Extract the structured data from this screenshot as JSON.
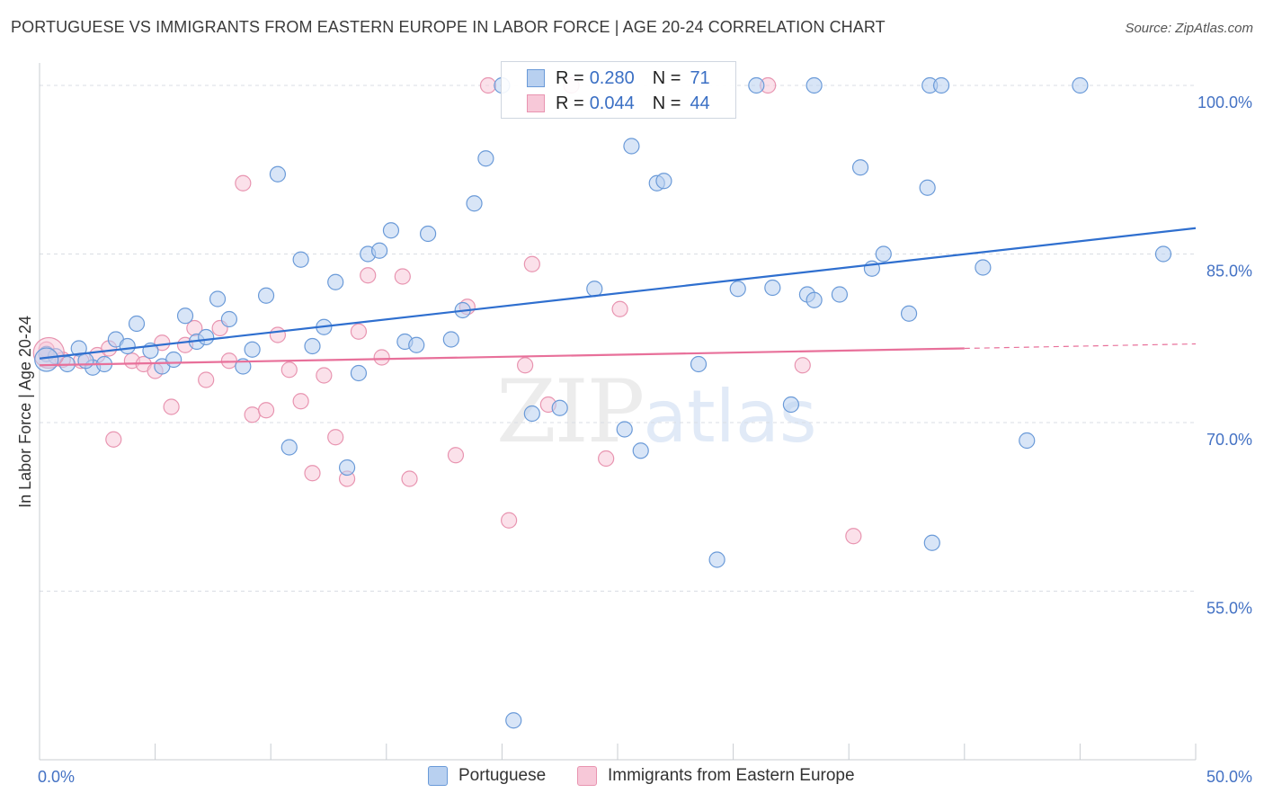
{
  "title": "PORTUGUESE VS IMMIGRANTS FROM EASTERN EUROPE IN LABOR FORCE | AGE 20-24 CORRELATION CHART",
  "source": "Source: ZipAtlas.com",
  "watermark": {
    "zip": "ZIP",
    "atlas": "atlas"
  },
  "legend": {
    "rows": [
      {
        "r_label": "R =",
        "r_value": "0.280",
        "n_label": "N =",
        "n_value": "71"
      },
      {
        "r_label": "R =",
        "r_value": "0.044",
        "n_label": "N =",
        "n_value": "44"
      }
    ]
  },
  "bottom_legend": [
    "Portuguese",
    "Immigrants from Eastern Europe"
  ],
  "colors": {
    "blue_fill": "#b8d0f0",
    "blue_stroke": "#6a9ad8",
    "blue_line": "#2f6fcf",
    "pink_fill": "#f7c8d8",
    "pink_stroke": "#e894b0",
    "pink_line": "#e8709a",
    "tick_text": "#4472c4",
    "grid": "#d9dde4"
  },
  "chart_data": {
    "type": "scatter",
    "xlabel": "",
    "ylabel": "In Labor Force | Age 20-24",
    "xlim": [
      0,
      50
    ],
    "ylim": [
      40,
      102
    ],
    "y_ticks": [
      55,
      70,
      85,
      100
    ],
    "y_tick_labels": [
      "55.0%",
      "70.0%",
      "85.0%",
      "100.0%"
    ],
    "x_tick_labels": [
      "0.0%",
      "50.0%"
    ],
    "grid": "horizontal dashed",
    "series": [
      {
        "name": "Portuguese",
        "points": [
          [
            0.3,
            76.1
          ],
          [
            0.7,
            75.9
          ],
          [
            1.2,
            75.2
          ],
          [
            1.7,
            76.6
          ],
          [
            2.3,
            74.9
          ],
          [
            2.8,
            75.2
          ],
          [
            3.3,
            77.4
          ],
          [
            3.8,
            76.8
          ],
          [
            4.2,
            78.8
          ],
          [
            4.8,
            76.4
          ],
          [
            5.3,
            75.0
          ],
          [
            5.8,
            75.6
          ],
          [
            6.3,
            79.5
          ],
          [
            6.8,
            77.2
          ],
          [
            7.2,
            77.6
          ],
          [
            7.7,
            81.0
          ],
          [
            8.2,
            79.2
          ],
          [
            8.8,
            75.0
          ],
          [
            9.2,
            76.5
          ],
          [
            9.8,
            81.3
          ],
          [
            10.3,
            92.1
          ],
          [
            10.8,
            67.8
          ],
          [
            11.3,
            84.5
          ],
          [
            11.8,
            76.8
          ],
          [
            12.3,
            78.5
          ],
          [
            12.8,
            82.5
          ],
          [
            13.3,
            66.0
          ],
          [
            13.8,
            74.4
          ],
          [
            14.2,
            85.0
          ],
          [
            14.7,
            85.3
          ],
          [
            15.2,
            87.1
          ],
          [
            15.8,
            77.2
          ],
          [
            16.3,
            76.9
          ],
          [
            16.8,
            86.8
          ],
          [
            17.8,
            77.4
          ],
          [
            18.3,
            80.0
          ],
          [
            18.8,
            89.5
          ],
          [
            19.3,
            93.5
          ],
          [
            20.0,
            100.0
          ],
          [
            21.3,
            70.8
          ],
          [
            22.5,
            71.3
          ],
          [
            24.0,
            81.9
          ],
          [
            25.3,
            69.4
          ],
          [
            25.6,
            94.6
          ],
          [
            26.0,
            67.5
          ],
          [
            26.7,
            91.3
          ],
          [
            27.0,
            91.5
          ],
          [
            28.5,
            75.2
          ],
          [
            30.2,
            81.9
          ],
          [
            31.0,
            100.0
          ],
          [
            31.7,
            82.0
          ],
          [
            32.5,
            71.6
          ],
          [
            33.2,
            81.4
          ],
          [
            33.5,
            80.9
          ],
          [
            33.5,
            100.0
          ],
          [
            34.6,
            81.4
          ],
          [
            35.5,
            92.7
          ],
          [
            36.0,
            83.7
          ],
          [
            36.5,
            85.0
          ],
          [
            37.6,
            79.7
          ],
          [
            38.4,
            90.9
          ],
          [
            38.6,
            59.3
          ],
          [
            38.5,
            100.0
          ],
          [
            39.0,
            100.0
          ],
          [
            40.8,
            83.8
          ],
          [
            42.7,
            68.4
          ],
          [
            45.0,
            100.0
          ],
          [
            48.6,
            85.0
          ],
          [
            20.5,
            43.5
          ],
          [
            29.3,
            57.8
          ],
          [
            2.0,
            75.5
          ]
        ]
      },
      {
        "name": "Immigrants from Eastern Europe",
        "points": [
          [
            0.3,
            76.5
          ],
          [
            1.0,
            75.6
          ],
          [
            1.8,
            75.5
          ],
          [
            2.5,
            76.0
          ],
          [
            3.0,
            76.6
          ],
          [
            3.2,
            68.5
          ],
          [
            4.0,
            75.5
          ],
          [
            4.5,
            75.2
          ],
          [
            5.0,
            74.6
          ],
          [
            5.3,
            77.1
          ],
          [
            5.7,
            71.4
          ],
          [
            6.3,
            76.9
          ],
          [
            6.7,
            78.4
          ],
          [
            7.2,
            73.8
          ],
          [
            7.8,
            78.4
          ],
          [
            8.2,
            75.5
          ],
          [
            8.8,
            91.3
          ],
          [
            9.2,
            70.7
          ],
          [
            9.8,
            71.1
          ],
          [
            10.3,
            77.8
          ],
          [
            10.8,
            74.7
          ],
          [
            11.3,
            71.9
          ],
          [
            11.8,
            65.5
          ],
          [
            12.3,
            74.2
          ],
          [
            12.8,
            68.7
          ],
          [
            13.3,
            65.0
          ],
          [
            13.8,
            78.1
          ],
          [
            14.2,
            83.1
          ],
          [
            14.8,
            75.8
          ],
          [
            15.7,
            83.0
          ],
          [
            16.0,
            65.0
          ],
          [
            18.0,
            67.1
          ],
          [
            18.5,
            80.3
          ],
          [
            19.4,
            100.0
          ],
          [
            20.3,
            61.3
          ],
          [
            21.0,
            75.1
          ],
          [
            21.3,
            84.1
          ],
          [
            22.0,
            71.6
          ],
          [
            23.0,
            100.0
          ],
          [
            24.5,
            66.8
          ],
          [
            25.1,
            80.1
          ],
          [
            31.5,
            100.0
          ],
          [
            33.0,
            75.1
          ],
          [
            35.2,
            59.9
          ]
        ]
      }
    ],
    "trend_lines": [
      {
        "series": "Portuguese",
        "x": [
          0,
          50
        ],
        "y": [
          75.7,
          87.3
        ]
      },
      {
        "series": "Immigrants from Eastern Europe",
        "x": [
          0,
          40,
          50
        ],
        "y": [
          75.1,
          76.6,
          77.0
        ]
      }
    ]
  }
}
